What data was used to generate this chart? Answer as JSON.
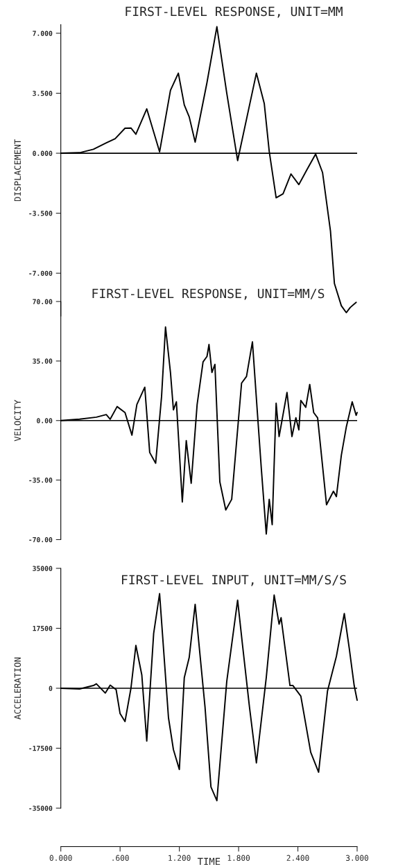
{
  "chart_data": [
    {
      "type": "line",
      "title": "FIRST-LEVEL RESPONSE, UNIT=MM",
      "ylabel": "DISPLACEMENT",
      "tick_labels": "y",
      "x": [
        0,
        0.19,
        0.33,
        0.46,
        0.55,
        0.65,
        0.71,
        0.76,
        0.87,
        1.0,
        1.11,
        1.19,
        1.25,
        1.3,
        1.36,
        1.48,
        1.58,
        1.68,
        1.79,
        1.98,
        2.06,
        2.11,
        2.18,
        2.25,
        2.33,
        2.41,
        2.49,
        2.58,
        2.65,
        2.73,
        2.77,
        2.84,
        2.89,
        2.93,
        2.99
      ],
      "values": [
        0,
        0.03,
        0.23,
        0.6,
        0.85,
        1.46,
        1.47,
        1.11,
        2.59,
        0.08,
        3.67,
        4.67,
        2.82,
        2.12,
        0.65,
        4.13,
        7.38,
        3.51,
        -0.43,
        4.67,
        2.89,
        0.11,
        -2.6,
        -2.37,
        -1.21,
        -1.83,
        -0.98,
        -0.05,
        -1.13,
        -4.54,
        -7.6,
        -8.9,
        -9.3,
        -9.0,
        -8.7
      ],
      "color": "#000000",
      "xlim": [
        0,
        3.0
      ],
      "ylim": [
        -9.5,
        7.5
      ],
      "yticks": [
        {
          "value": 7,
          "label": "7.000"
        },
        {
          "value": 3.5,
          "label": "3.500"
        },
        {
          "value": 0,
          "label": "0.000"
        },
        {
          "value": -3.5,
          "label": "-3.500"
        },
        {
          "value": -7,
          "label": "-7.000"
        }
      ],
      "ref_lines": [
        {
          "axis": "y",
          "value": 0
        }
      ]
    },
    {
      "type": "line",
      "title": "FIRST-LEVEL RESPONSE, UNIT=MM/S",
      "ylabel": "VELOCITY",
      "tick_labels": "y",
      "x": [
        0,
        0.19,
        0.36,
        0.46,
        0.5,
        0.57,
        0.65,
        0.72,
        0.77,
        0.85,
        0.9,
        0.96,
        1.02,
        1.06,
        1.11,
        1.14,
        1.17,
        1.23,
        1.27,
        1.32,
        1.38,
        1.44,
        1.48,
        1.5,
        1.53,
        1.56,
        1.61,
        1.67,
        1.73,
        1.83,
        1.88,
        1.94,
        1.99,
        2.03,
        2.08,
        2.11,
        2.14,
        2.18,
        2.21,
        2.29,
        2.34,
        2.38,
        2.41,
        2.43,
        2.48,
        2.52,
        2.56,
        2.6,
        2.69,
        2.76,
        2.79,
        2.84,
        2.89,
        2.95,
        2.99,
        3.0
      ],
      "values": [
        0,
        0.8,
        2.0,
        3.5,
        0.8,
        8.2,
        4.7,
        -8.6,
        9.4,
        19.6,
        -18.8,
        -25.1,
        14.1,
        55,
        28.3,
        6.3,
        11,
        -47.9,
        -11.8,
        -36.9,
        9.4,
        34.5,
        37.7,
        44.7,
        28.3,
        33,
        -36.1,
        -52.6,
        -46.3,
        22,
        25.9,
        46.3,
        4.7,
        -28.3,
        -66.7,
        -46.3,
        -61.2,
        10.2,
        -9.4,
        16.5,
        -9.4,
        1.6,
        -5.5,
        11.8,
        7.8,
        21.2,
        4.7,
        1.6,
        -49.5,
        -41.6,
        -44.7,
        -20.4,
        -3.9,
        11,
        3.1,
        4.7
      ],
      "color": "#000000",
      "xlim": [
        0,
        3.0
      ],
      "ylim": [
        -70,
        70
      ],
      "yticks": [
        {
          "value": 70,
          "label": "70.00"
        },
        {
          "value": 35,
          "label": "35.00"
        },
        {
          "value": 0,
          "label": "0.00"
        },
        {
          "value": -35,
          "label": "-35.00"
        },
        {
          "value": -70,
          "label": "-70.00"
        }
      ],
      "ref_lines": [
        {
          "axis": "y",
          "value": 0
        }
      ]
    },
    {
      "type": "line",
      "title": "FIRST-LEVEL INPUT, UNIT=MM/S/S",
      "ylabel": "ACCELERATION",
      "xlabel": "TIME",
      "x": [
        0,
        0.19,
        0.33,
        0.36,
        0.45,
        0.5,
        0.56,
        0.6,
        0.65,
        0.71,
        0.76,
        0.82,
        0.87,
        0.94,
        1.0,
        1.09,
        1.14,
        1.2,
        1.25,
        1.3,
        1.36,
        1.46,
        1.52,
        1.58,
        1.68,
        1.79,
        1.84,
        1.91,
        1.98,
        2.08,
        2.16,
        2.21,
        2.23,
        2.32,
        2.35,
        2.43,
        2.53,
        2.61,
        2.7,
        2.79,
        2.87,
        2.92,
        2.97,
        3.0
      ],
      "values": [
        0,
        -200,
        800,
        1300,
        -1400,
        900,
        -400,
        -7400,
        -9700,
        0,
        12500,
        3900,
        -15400,
        16000,
        27600,
        -8600,
        -17900,
        -23700,
        3100,
        9000,
        24500,
        -5500,
        -28800,
        -32800,
        2000,
        25700,
        12500,
        -5500,
        -21800,
        3100,
        27200,
        18700,
        20600,
        800,
        800,
        -2300,
        -18700,
        -24500,
        -800,
        9300,
        21800,
        11700,
        800,
        -3500
      ],
      "color": "#000000",
      "xlim": [
        0,
        3.0
      ],
      "ylim": [
        -35000,
        35000
      ],
      "xticks": [
        {
          "value": 0,
          "label": "0.000"
        },
        {
          "value": 0.6,
          "label": ".600"
        },
        {
          "value": 1.2,
          "label": "1.200"
        },
        {
          "value": 1.8,
          "label": "1.800"
        },
        {
          "value": 2.4,
          "label": "2.400"
        },
        {
          "value": 3.0,
          "label": "3.000"
        }
      ],
      "yticks": [
        35000,
        17500,
        0,
        -17500,
        -35000
      ],
      "ref_lines": [
        {
          "axis": "y",
          "value": 0
        }
      ]
    }
  ]
}
